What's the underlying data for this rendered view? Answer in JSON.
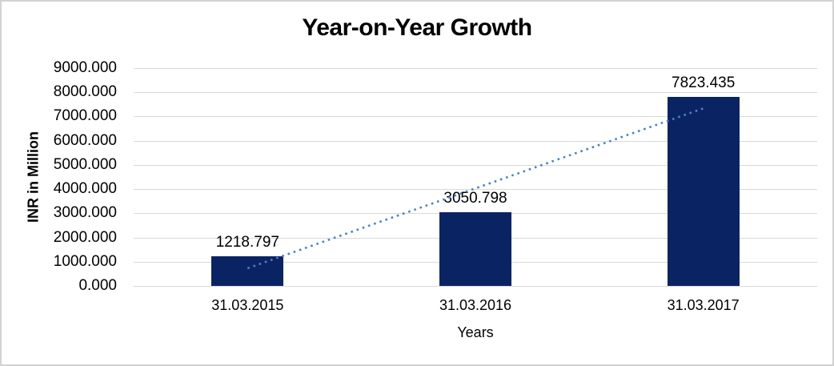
{
  "chart_data": {
    "type": "bar",
    "title": "Year-on-Year Growth",
    "xlabel": "Years",
    "ylabel": "INR in Million",
    "categories": [
      "31.03.2015",
      "31.03.2016",
      "31.03.2017"
    ],
    "values": [
      1218.797,
      3050.798,
      7823.435
    ],
    "value_labels": [
      "1218.797",
      "3050.798",
      "7823.435"
    ],
    "ylim": [
      0,
      9000
    ],
    "ytick_step": 1000,
    "ytick_labels": [
      "0.000",
      "1000.000",
      "2000.000",
      "3000.000",
      "4000.000",
      "5000.000",
      "6000.000",
      "7000.000",
      "8000.000",
      "9000.000"
    ],
    "grid": true,
    "legend": "none",
    "bar_color": "#0a2463",
    "gridline_color": "#d9d9d9",
    "trendline": {
      "type": "linear",
      "style": "dotted",
      "color": "#4f81bd",
      "start_category_index": 0,
      "end_category_index": 2,
      "start_value": 728.69,
      "end_value": 7333.33
    }
  }
}
